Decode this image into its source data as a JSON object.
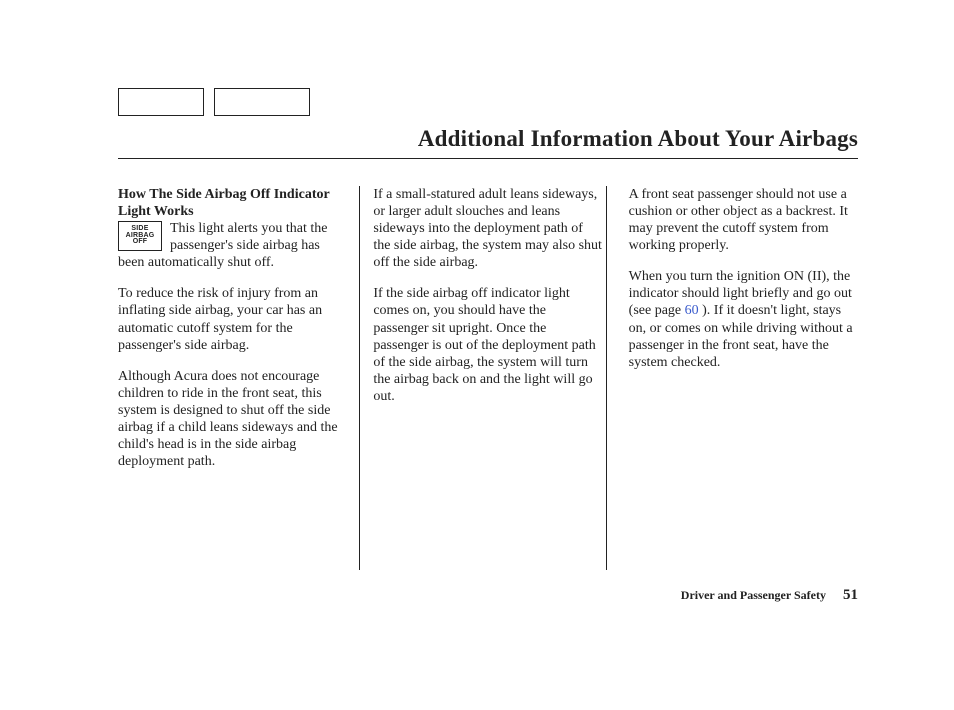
{
  "page_title": "Additional Information About Your Airbags",
  "indicator_icon": {
    "l1": "SIDE",
    "l2": "AIRBAG",
    "l3": "OFF"
  },
  "col1": {
    "subhead": "How The Side Airbag Off Indicator Light Works",
    "p0_after_icon": "This light alerts you that the passenger's side airbag has been automatically shut off.",
    "p1": "To reduce the risk of injury from an inflating side airbag, your car has an automatic cutoff system for the passenger's side airbag.",
    "p2": "Although Acura does not encourage children to ride in the front seat, this system is designed to shut off the side airbag if a child leans sideways and the child's head is in the side airbag deployment path."
  },
  "col2": {
    "p0": "If a small-statured adult leans sideways, or larger adult slouches and leans sideways into the deployment path of the side airbag, the system may also shut off the side airbag.",
    "p1": "If the side airbag off indicator light comes on, you should have the passenger sit upright. Once the passenger is out of the deployment path of the side airbag, the system will turn the airbag back on and the light will go out."
  },
  "col3": {
    "p0": "A front seat passenger should not use a cushion or other object as a backrest. It may prevent the cutoff system from working properly.",
    "p1_pre": "When you turn the ignition ON (II), the indicator should light briefly and go out (see page ",
    "p1_link": "60",
    "p1_post": " ). If it doesn't light, stays on, or comes on while driving without a passenger in the front seat, have the system checked."
  },
  "footer": {
    "section": "Driver and Passenger Safety",
    "page": "51"
  },
  "colors": {
    "text": "#222222",
    "link": "#3a5bcc",
    "bg": "#ffffff"
  }
}
